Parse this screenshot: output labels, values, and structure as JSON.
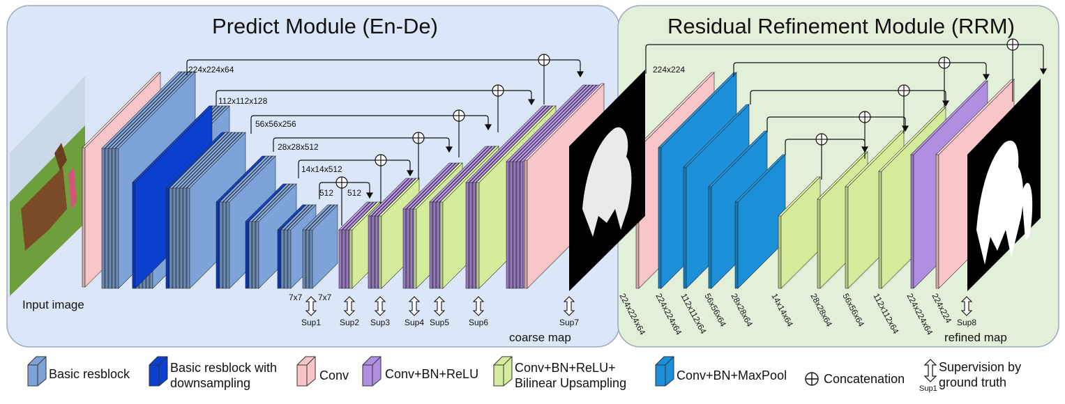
{
  "modules": {
    "predict_title": "Predict Module (En-De)",
    "rrm_title": "Residual Refinement Module (RRM)"
  },
  "labels": {
    "input_image": "Input image",
    "coarse_map": "coarse map",
    "refined_map": "refined map"
  },
  "encoder_dims": [
    "224x224x64",
    "112x112x128",
    "56x56x256",
    "28x28x512",
    "14x14x512",
    "512",
    "512"
  ],
  "bridge_dims": [
    "7x7",
    "7x7"
  ],
  "rrm_top_dim": "224x224",
  "rrm_bottom_dims": [
    "224x224x64",
    "224x224x64",
    "112x112x64",
    "56x56x64",
    "28x28x64",
    "14x14x64",
    "28x28x64",
    "56x56x64",
    "112x112x64",
    "224x224x64",
    "224x224"
  ],
  "supervision": [
    "Sup1",
    "Sup2",
    "Sup3",
    "Sup4",
    "Sup5",
    "Sup6",
    "Sup7",
    "Sup8"
  ],
  "legend": {
    "basic_resblock": "Basic resblock",
    "basic_resblock_down_1": "Basic resblock with",
    "basic_resblock_down_2": "downsampling",
    "conv": "Conv",
    "conv_bn_relu": "Conv+BN+ReLU",
    "conv_bn_relu_up_1": "Conv+BN+ReLU+",
    "conv_bn_relu_up_2": "Bilinear Upsampling",
    "conv_bn_maxpool": "Conv+BN+MaxPool",
    "concatenation": "Concatenation",
    "supervision_1": "Supervision by",
    "supervision_2": "ground truth",
    "sup_example": "Sup1"
  },
  "colors": {
    "predict_bg": "#dbe6f8",
    "rrm_bg": "#e2efd9",
    "basic_resblock": "#7ea3d8",
    "basic_resblock_down": "#0a3fd0",
    "conv": "#f8c6c8",
    "conv_bn_relu": "#b08ee0",
    "conv_bn_relu_up": "#d4ec9c",
    "conv_bn_maxpool": "#1b8fd8"
  }
}
